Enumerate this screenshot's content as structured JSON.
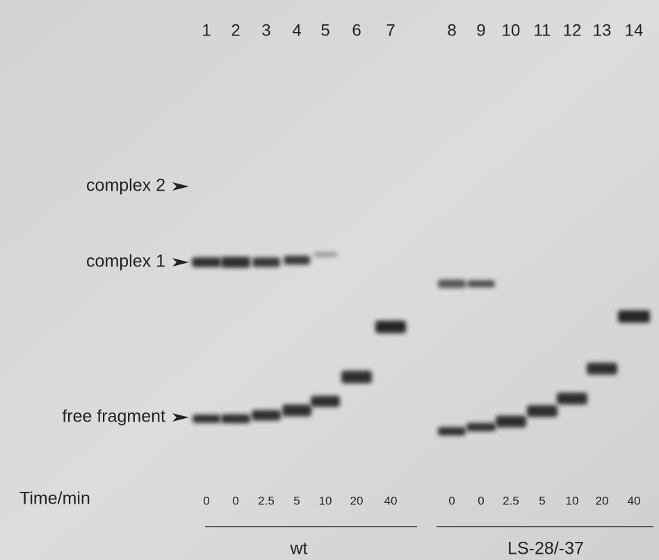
{
  "lanes": [
    {
      "number": "1",
      "time": "0"
    },
    {
      "number": "2",
      "time": "0"
    },
    {
      "number": "3",
      "time": "2.5"
    },
    {
      "number": "4",
      "time": "5"
    },
    {
      "number": "5",
      "time": "10"
    },
    {
      "number": "6",
      "time": "20"
    },
    {
      "number": "7",
      "time": "40"
    },
    {
      "number": "8",
      "time": "0"
    },
    {
      "number": "9",
      "time": "0"
    },
    {
      "number": "10",
      "time": "2.5"
    },
    {
      "number": "11",
      "time": "5"
    },
    {
      "number": "12",
      "time": "10"
    },
    {
      "number": "13",
      "time": "20"
    },
    {
      "number": "14",
      "time": "40"
    }
  ],
  "band_labels": [
    "complex 2",
    "complex 1",
    "free fragment"
  ],
  "time_label": "Time/min",
  "groups": [
    {
      "label": "wt"
    },
    {
      "label": "LS-28/-37"
    }
  ]
}
